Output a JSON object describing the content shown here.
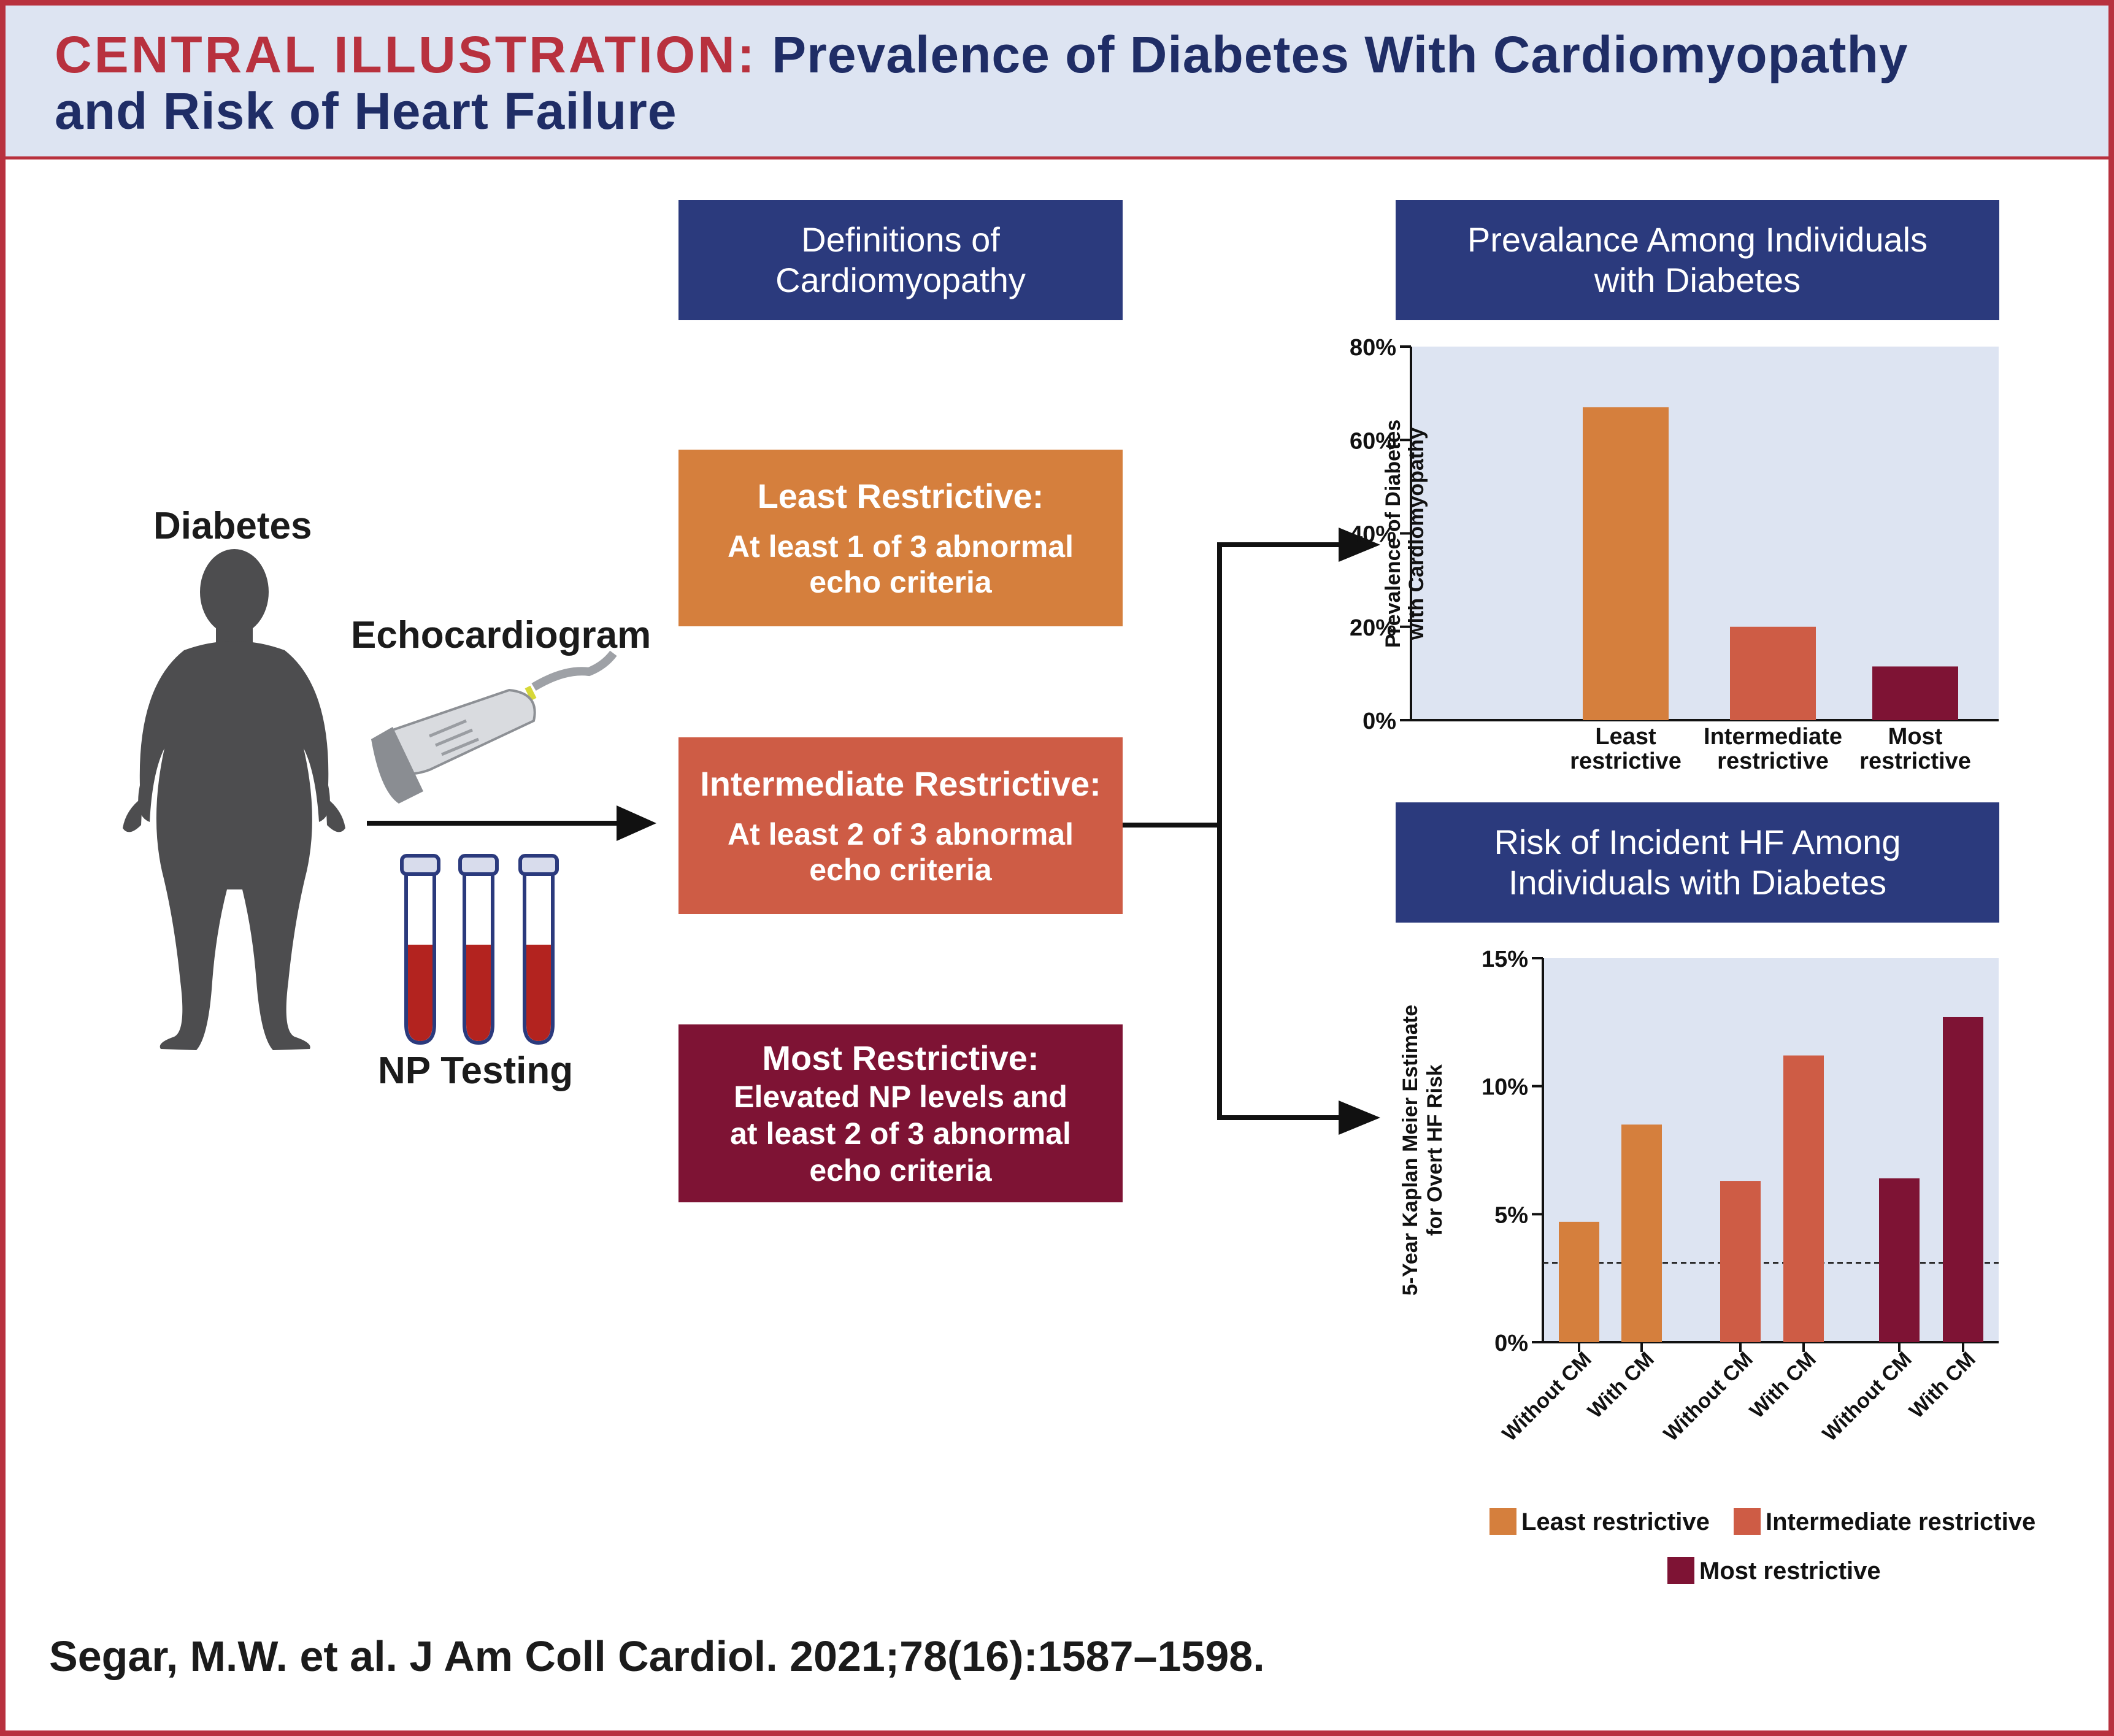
{
  "header": {
    "label": "CENTRAL ILLUSTRATION:",
    "title_line1": "Prevalence of Diabetes With Cardiomyopathy",
    "title_line2": "and Risk of Heart Failure"
  },
  "left": {
    "diabetes_label": "Diabetes",
    "echo_label": "Echocardiogram",
    "np_label": "NP Testing"
  },
  "definitions": {
    "header_line1": "Definitions of",
    "header_line2": "Cardiomyopathy",
    "least": {
      "title": "Least Restrictive:",
      "line1": "At least 1 of 3 abnormal",
      "line2": "echo criteria"
    },
    "intermediate": {
      "title": "Intermediate Restrictive:",
      "line1": "At least 2 of 3 abnormal",
      "line2": "echo criteria"
    },
    "most": {
      "title": "Most Restrictive:",
      "line1": "Elevated NP levels and",
      "line2": "at least 2 of 3 abnormal",
      "line3": "echo criteria"
    }
  },
  "colors": {
    "navy": "#2b3a7d",
    "least": "#d57f3d",
    "intermediate": "#ce5c45",
    "most": "#7e1334",
    "plot_bg": "#dde4f2",
    "accent_red": "#b8313e"
  },
  "chart_data": [
    {
      "type": "bar",
      "title_line1": "Prevalance Among Individuals",
      "title_line2": "with Diabetes",
      "ylabel_line1": "Prevalence of Diabetes",
      "ylabel_line2": "with Cardiomyopathy",
      "categories": [
        {
          "line1": "Least",
          "line2": "restrictive"
        },
        {
          "line1": "Intermediate",
          "line2": "restrictive"
        },
        {
          "line1": "Most",
          "line2": "restrictive"
        }
      ],
      "values": [
        67,
        20,
        11.5
      ],
      "ylim": [
        0,
        80
      ],
      "yticks": [
        0,
        20,
        40,
        60,
        80
      ],
      "ytick_labels": [
        "0%",
        "20%",
        "40%",
        "60%",
        "80%"
      ]
    },
    {
      "type": "bar",
      "title_line1": "Risk of Incident HF Among",
      "title_line2": "Individuals with Diabetes",
      "ylabel_line1": "5-Year Kaplan Meier Estimate",
      "ylabel_line2": "for Overt HF Risk",
      "categories": [
        "Without CM",
        "With CM",
        "Without CM",
        "With CM",
        "Without CM",
        "With CM"
      ],
      "groups": [
        "least",
        "least",
        "intermediate",
        "intermediate",
        "most",
        "most"
      ],
      "values": [
        4.7,
        8.5,
        6.3,
        11.2,
        6.4,
        12.7
      ],
      "reference_line": 3.1,
      "ylim": [
        0,
        15
      ],
      "yticks": [
        0,
        5,
        10,
        15
      ],
      "ytick_labels": [
        "0%",
        "5%",
        "10%",
        "15%"
      ],
      "legend": [
        "Least restrictive",
        "Intermediate restrictive",
        "Most restrictive"
      ]
    }
  ],
  "citation": "Segar, M.W. et al. J Am Coll Cardiol. 2021;78(16):1587–1598."
}
